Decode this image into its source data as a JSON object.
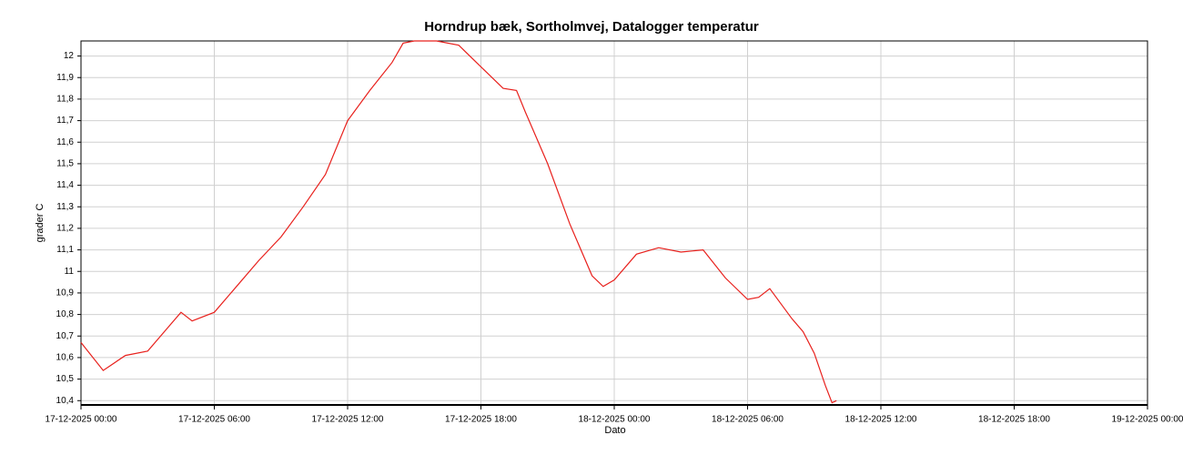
{
  "chart_data": {
    "type": "line",
    "title": "Horndrup bæk, Sortholmvej, Datalogger temperatur",
    "x_label": "Dato",
    "y_label": "grader C",
    "x": [
      "17-12-2025 00:00",
      "17-12-2025 01:00",
      "17-12-2025 02:00",
      "17-12-2025 03:00",
      "17-12-2025 04:00",
      "17-12-2025 04:30",
      "17-12-2025 05:00",
      "17-12-2025 06:00",
      "17-12-2025 07:00",
      "17-12-2025 08:00",
      "17-12-2025 09:00",
      "17-12-2025 10:00",
      "17-12-2025 11:00",
      "17-12-2025 12:00",
      "17-12-2025 13:00",
      "17-12-2025 14:00",
      "17-12-2025 14:30",
      "17-12-2025 15:00",
      "17-12-2025 16:00",
      "17-12-2025 17:00",
      "17-12-2025 18:00",
      "17-12-2025 19:00",
      "17-12-2025 19:36",
      "17-12-2025 20:00",
      "17-12-2025 21:00",
      "17-12-2025 22:00",
      "17-12-2025 23:00",
      "17-12-2025 23:30",
      "18-12-2025 00:00",
      "18-12-2025 01:00",
      "18-12-2025 02:00",
      "18-12-2025 03:00",
      "18-12-2025 04:00",
      "18-12-2025 05:00",
      "18-12-2025 06:00",
      "18-12-2025 06:30",
      "18-12-2025 07:00",
      "18-12-2025 08:00",
      "18-12-2025 08:30",
      "18-12-2025 09:00",
      "18-12-2025 09:30",
      "18-12-2025 09:48",
      "18-12-2025 10:00"
    ],
    "series": [
      {
        "name": "Datalogger temperatur",
        "color": "#e8201c",
        "values": [
          10.67,
          10.54,
          10.61,
          10.63,
          10.75,
          10.81,
          10.77,
          10.81,
          10.93,
          11.05,
          11.16,
          11.3,
          11.45,
          11.7,
          11.84,
          11.97,
          12.06,
          12.07,
          12.07,
          12.05,
          11.95,
          11.85,
          11.84,
          11.74,
          11.5,
          11.22,
          10.98,
          10.93,
          10.96,
          11.08,
          11.11,
          11.09,
          11.1,
          10.97,
          10.87,
          10.88,
          10.92,
          10.78,
          10.72,
          10.62,
          10.47,
          10.39,
          10.4
        ]
      }
    ],
    "xlim": [
      "17-12-2025 00:00",
      "19-12-2025 00:00"
    ],
    "xticks": [
      "17-12-2025 00:00",
      "17-12-2025 06:00",
      "17-12-2025 12:00",
      "17-12-2025 18:00",
      "18-12-2025 00:00",
      "18-12-2025 06:00",
      "18-12-2025 12:00",
      "18-12-2025 18:00",
      "19-12-2025 00:00"
    ],
    "ylim": [
      10.38,
      12.07
    ],
    "yticks": [
      {
        "value": 10.4,
        "label": "10,4"
      },
      {
        "value": 10.5,
        "label": "10,5"
      },
      {
        "value": 10.6,
        "label": "10,6"
      },
      {
        "value": 10.7,
        "label": "10,7"
      },
      {
        "value": 10.8,
        "label": "10,8"
      },
      {
        "value": 10.9,
        "label": "10,9"
      },
      11,
      {
        "value": 11.1,
        "label": "11,1"
      },
      {
        "value": 11.2,
        "label": "11,2"
      },
      {
        "value": 11.3,
        "label": "11,3"
      },
      {
        "value": 11.4,
        "label": "11,4"
      },
      {
        "value": 11.5,
        "label": "11,5"
      },
      {
        "value": 11.6,
        "label": "11,6"
      },
      {
        "value": 11.7,
        "label": "11,7"
      },
      {
        "value": 11.8,
        "label": "11,8"
      },
      {
        "value": 11.9,
        "label": "11,9"
      },
      12
    ],
    "grid": true
  }
}
